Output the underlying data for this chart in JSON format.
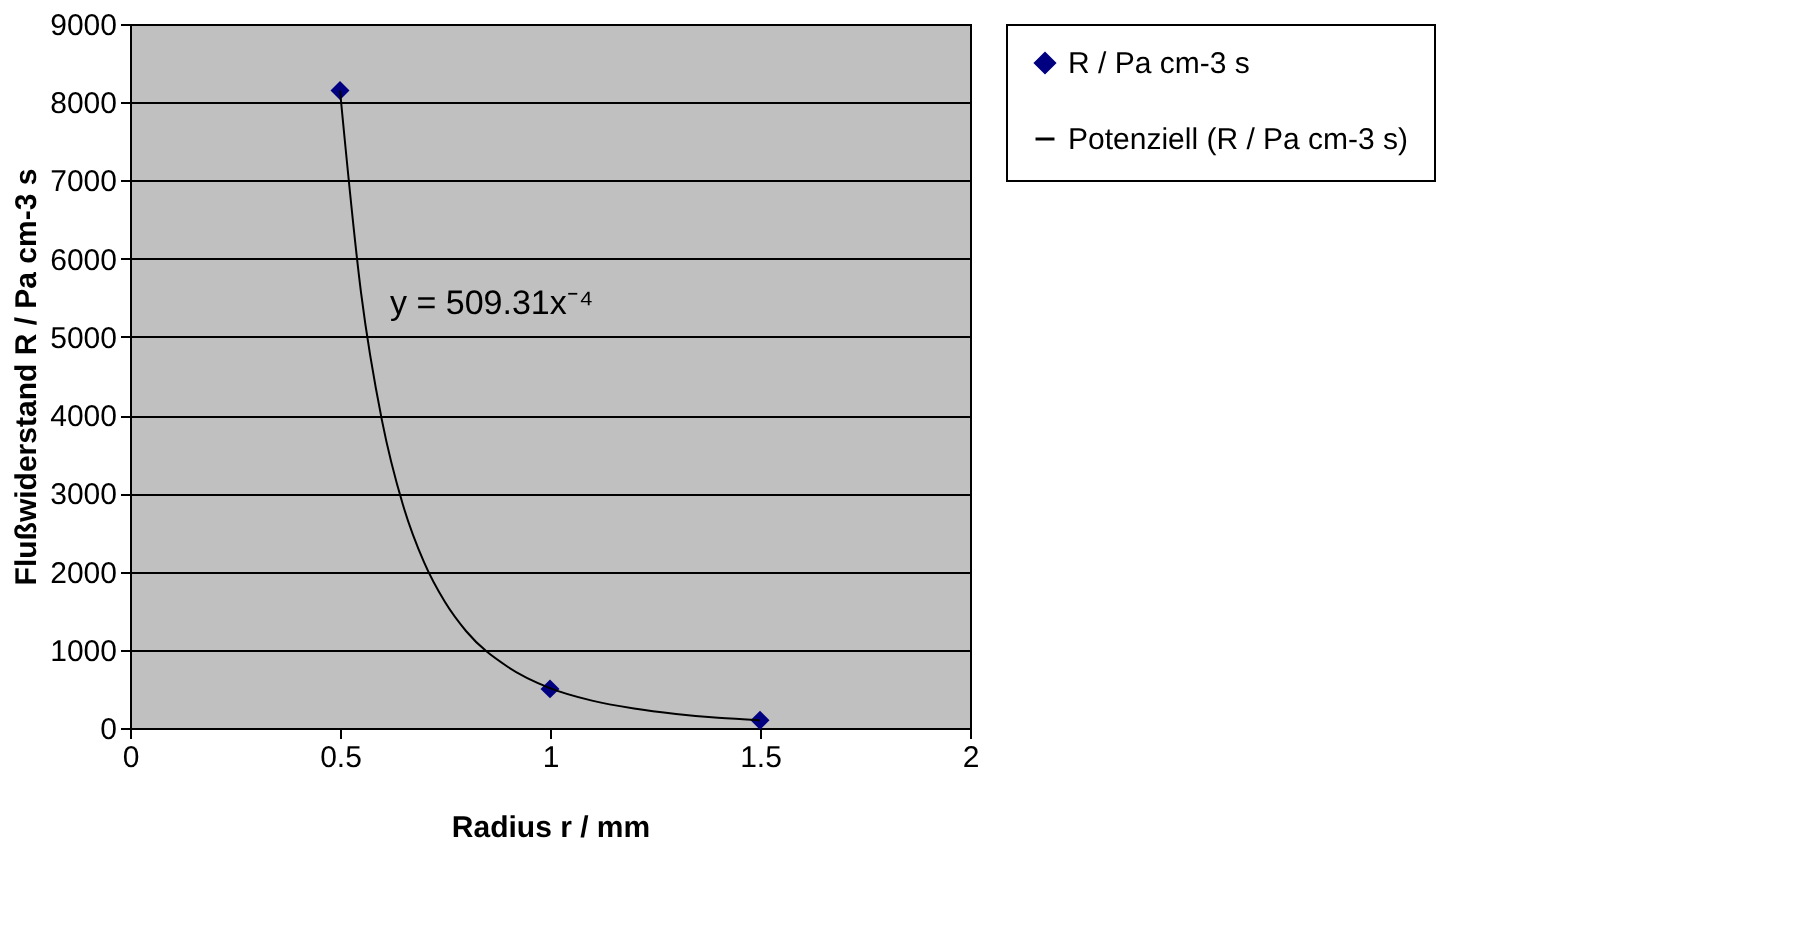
{
  "chart_data": {
    "type": "scatter",
    "xlabel": "Radius r / mm",
    "ylabel": "Flußwiderstand R / Pa cm-3 s",
    "xlim": [
      0,
      2
    ],
    "xticks": [
      0,
      0.5,
      1,
      1.5,
      2
    ],
    "ylim": [
      0,
      9000
    ],
    "yticks": [
      0,
      1000,
      2000,
      3000,
      4000,
      5000,
      6000,
      7000,
      8000,
      9000
    ],
    "grid": "y",
    "legend": "right",
    "annotations": [
      "y = 509.31x⁻⁴"
    ],
    "series": [
      {
        "name": "R / Pa cm-3 s",
        "color": "#000080",
        "marker": "diamond",
        "x": [
          0.5,
          1,
          1.5
        ],
        "values": [
          8150,
          500,
          100
        ]
      },
      {
        "name": "Potenziell (R / Pa cm-3 s)",
        "color": "#000000",
        "type": "line",
        "marker": "none",
        "x": [
          0.5,
          0.55,
          0.6,
          0.65,
          0.7,
          0.75,
          0.8,
          0.9,
          1.0,
          1.1,
          1.2,
          1.3,
          1.4,
          1.5
        ],
        "values": [
          8150,
          5570,
          3930,
          2850,
          2120,
          1610,
          1240,
          780,
          510,
          350,
          250,
          180,
          130,
          100
        ]
      }
    ]
  }
}
